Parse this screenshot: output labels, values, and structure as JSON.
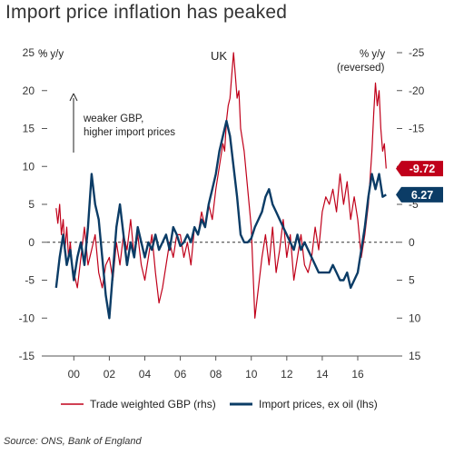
{
  "header": {
    "title": "Import price inflation has peaked"
  },
  "footer": {
    "source": "Source: ONS, Bank of England"
  },
  "colors": {
    "trade_gbp": "#c0001a",
    "import_prices": "#0b3c66",
    "axis": "#555555"
  },
  "chart_data": {
    "type": "line",
    "title": "Import price inflation has peaked",
    "region_label": "UK",
    "left_axis": {
      "unit": "% y/y",
      "range": [
        -15,
        25
      ],
      "ticks": [
        -15,
        -10,
        -5,
        0,
        5,
        10,
        15,
        20,
        25
      ]
    },
    "right_axis": {
      "unit": "% y/y",
      "note": "(reversed)",
      "range": [
        15,
        -25
      ],
      "reversed": true,
      "ticks": [
        15,
        10,
        5,
        0,
        -5,
        -10,
        -15,
        -20,
        -25
      ]
    },
    "x_axis": {
      "range": [
        1998.5,
        2018.2
      ],
      "ticks": [
        2000,
        2002,
        2004,
        2006,
        2008,
        2010,
        2012,
        2014,
        2016
      ],
      "tick_labels": [
        "00",
        "02",
        "04",
        "06",
        "08",
        "10",
        "12",
        "14",
        "16"
      ]
    },
    "annotation": {
      "text_line1": "weaker GBP,",
      "text_line2": "higher import prices"
    },
    "end_labels": {
      "trade_gbp": "-9.72",
      "import_prices": "6.27"
    },
    "grid": false,
    "legend": {
      "placement": "bottom"
    },
    "series": [
      {
        "name": "Trade weighted GBP (rhs)",
        "axis": "right",
        "color": "#c0001a",
        "x": [
          1999.0,
          1999.1,
          1999.2,
          1999.3,
          1999.4,
          1999.5,
          1999.6,
          1999.7,
          1999.8,
          1999.9,
          2000.0,
          2000.2,
          2000.4,
          2000.6,
          2000.8,
          2001.0,
          2001.2,
          2001.4,
          2001.6,
          2001.8,
          2002.0,
          2002.2,
          2002.4,
          2002.6,
          2002.8,
          2003.0,
          2003.2,
          2003.4,
          2003.6,
          2003.8,
          2004.0,
          2004.2,
          2004.4,
          2004.6,
          2004.8,
          2005.0,
          2005.2,
          2005.4,
          2005.6,
          2005.8,
          2006.0,
          2006.2,
          2006.4,
          2006.6,
          2006.8,
          2007.0,
          2007.2,
          2007.4,
          2007.6,
          2007.8,
          2008.0,
          2008.2,
          2008.4,
          2008.5,
          2008.6,
          2008.7,
          2008.8,
          2008.9,
          2009.0,
          2009.1,
          2009.2,
          2009.3,
          2009.4,
          2009.6,
          2009.8,
          2010.0,
          2010.1,
          2010.2,
          2010.4,
          2010.6,
          2010.8,
          2011.0,
          2011.2,
          2011.4,
          2011.6,
          2011.8,
          2012.0,
          2012.2,
          2012.4,
          2012.6,
          2012.8,
          2013.0,
          2013.2,
          2013.4,
          2013.6,
          2013.8,
          2014.0,
          2014.2,
          2014.4,
          2014.6,
          2014.8,
          2015.0,
          2015.2,
          2015.4,
          2015.6,
          2015.8,
          2016.0,
          2016.2,
          2016.4,
          2016.6,
          2016.8,
          2016.9,
          2017.0,
          2017.1,
          2017.2,
          2017.3,
          2017.4,
          2017.5,
          2017.6
        ],
        "values": [
          -4.5,
          -2.5,
          -5,
          -1,
          -3,
          1,
          -2,
          2,
          0,
          3,
          4,
          6,
          2,
          -2,
          3,
          1,
          -1,
          4,
          6,
          3,
          2,
          5,
          0,
          3,
          -1,
          1,
          -3,
          2,
          -1,
          3,
          5,
          2,
          -1,
          4,
          8,
          6,
          3,
          0,
          2,
          -1,
          -1,
          2,
          0,
          3,
          -2,
          -1,
          -4,
          -2,
          -5,
          -3,
          -7,
          -10,
          -13,
          -12,
          -16,
          -18,
          -19,
          -22,
          -25,
          -22,
          -19,
          -20,
          -15,
          -12,
          -7,
          -2,
          4,
          10,
          6,
          2,
          -1,
          3,
          -2,
          4,
          1,
          -3,
          2,
          -1,
          5,
          2,
          -1,
          3,
          4,
          2,
          -2,
          1,
          -4,
          -6,
          -5,
          -7,
          -4,
          -9,
          -5,
          -8,
          -3,
          -6,
          -3,
          2,
          -1,
          -5,
          -12,
          -17,
          -21,
          -18,
          -20,
          -15,
          -12,
          -13,
          -9.72
        ]
      },
      {
        "name": "Import prices, ex oil (lhs)",
        "axis": "left",
        "color": "#0b3c66",
        "x": [
          1999.0,
          1999.2,
          1999.4,
          1999.6,
          1999.8,
          2000.0,
          2000.2,
          2000.4,
          2000.6,
          2000.8,
          2001.0,
          2001.2,
          2001.4,
          2001.6,
          2001.8,
          2002.0,
          2002.2,
          2002.4,
          2002.6,
          2002.8,
          2003.0,
          2003.2,
          2003.4,
          2003.6,
          2003.8,
          2004.0,
          2004.2,
          2004.4,
          2004.6,
          2004.8,
          2005.0,
          2005.2,
          2005.4,
          2005.6,
          2005.8,
          2006.0,
          2006.2,
          2006.4,
          2006.6,
          2006.8,
          2007.0,
          2007.2,
          2007.4,
          2007.6,
          2007.8,
          2008.0,
          2008.2,
          2008.4,
          2008.6,
          2008.8,
          2009.0,
          2009.2,
          2009.4,
          2009.6,
          2009.8,
          2010.0,
          2010.2,
          2010.4,
          2010.6,
          2010.8,
          2011.0,
          2011.2,
          2011.4,
          2011.6,
          2011.8,
          2012.0,
          2012.2,
          2012.4,
          2012.6,
          2012.8,
          2013.0,
          2013.2,
          2013.4,
          2013.6,
          2013.8,
          2014.0,
          2014.2,
          2014.4,
          2014.6,
          2014.8,
          2015.0,
          2015.2,
          2015.4,
          2015.6,
          2015.8,
          2016.0,
          2016.2,
          2016.4,
          2016.6,
          2016.8,
          2017.0,
          2017.2,
          2017.4,
          2017.6
        ],
        "values": [
          -6,
          -2,
          1,
          -3,
          -1,
          -5,
          -2,
          0,
          -3,
          2,
          9,
          5,
          3,
          -2,
          -7,
          -10,
          -4,
          2,
          5,
          1,
          -3,
          0,
          -2,
          2,
          0,
          -2,
          0,
          -1,
          1,
          -1,
          0,
          1,
          -1,
          2,
          1,
          -0.5,
          0,
          1,
          0,
          2,
          1,
          3,
          2,
          5,
          7,
          9,
          12,
          14,
          16,
          14,
          10,
          6,
          1,
          0,
          0,
          0.5,
          2,
          3,
          4,
          6,
          7,
          5,
          4,
          3,
          2,
          1,
          0,
          -1,
          1,
          -1,
          0,
          -1,
          -2,
          -3,
          -4,
          -4,
          -4,
          -4,
          -3,
          -4,
          -5,
          -5,
          -4,
          -6,
          -5,
          -4,
          -1,
          2,
          6,
          9,
          7,
          9,
          6,
          6.27
        ]
      }
    ]
  }
}
